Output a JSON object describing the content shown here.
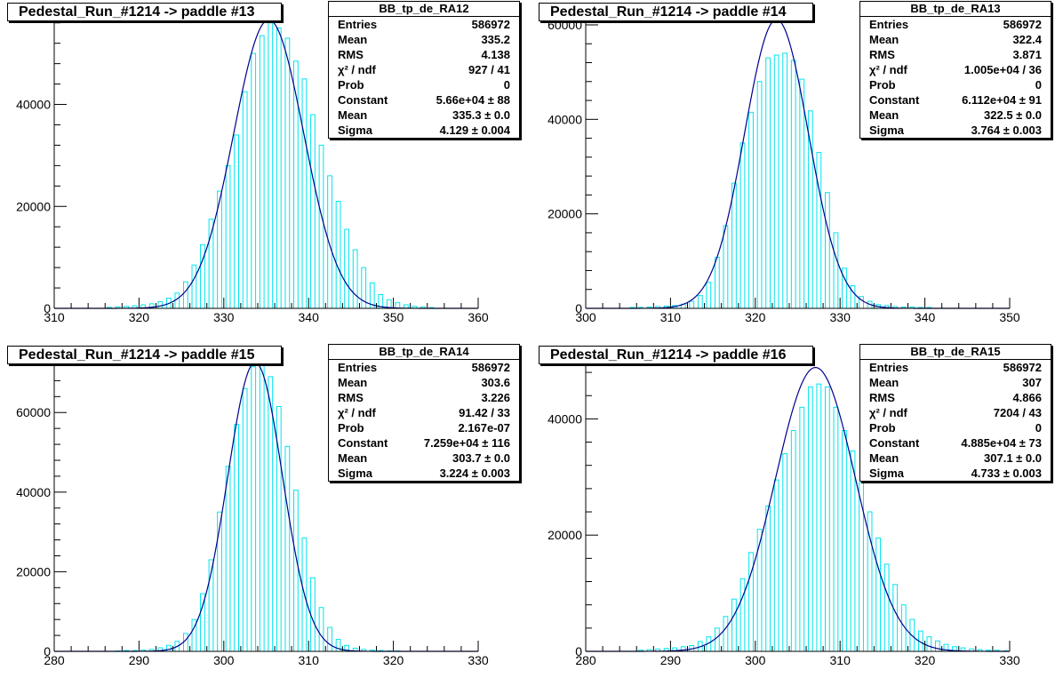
{
  "colors": {
    "hist": "#00e5ee",
    "fit": "#00008b",
    "axis": "#000000"
  },
  "pads": [
    {
      "title": "Pedestal_Run_#1214 -> paddle #13",
      "stats": {
        "name": "BB_tp_de_RA12",
        "rows": [
          [
            "Entries",
            "586972"
          ],
          [
            "Mean",
            "335.2"
          ],
          [
            "RMS",
            "4.138"
          ],
          [
            "χ² / ndf",
            "927 / 41"
          ],
          [
            "Prob",
            "0"
          ],
          [
            "Constant",
            "5.66e+04 ± 88"
          ],
          [
            "Mean",
            "335.3 ± 0.0"
          ],
          [
            "Sigma",
            "4.129 ± 0.004"
          ]
        ]
      }
    },
    {
      "title": "Pedestal_Run_#1214 -> paddle #14",
      "stats": {
        "name": "BB_tp_de_RA13",
        "rows": [
          [
            "Entries",
            "586972"
          ],
          [
            "Mean",
            "322.4"
          ],
          [
            "RMS",
            "3.871"
          ],
          [
            "χ² / ndf",
            "1.005e+04 / 36"
          ],
          [
            "Prob",
            "0"
          ],
          [
            "Constant",
            "6.112e+04 ± 91"
          ],
          [
            "Mean",
            "322.5 ± 0.0"
          ],
          [
            "Sigma",
            "3.764 ± 0.003"
          ]
        ]
      }
    },
    {
      "title": "Pedestal_Run_#1214 -> paddle #15",
      "stats": {
        "name": "BB_tp_de_RA14",
        "rows": [
          [
            "Entries",
            "586972"
          ],
          [
            "Mean",
            "303.6"
          ],
          [
            "RMS",
            "3.226"
          ],
          [
            "χ² / ndf",
            "91.42 / 33"
          ],
          [
            "Prob",
            "2.167e-07"
          ],
          [
            "Constant",
            "7.259e+04 ± 116"
          ],
          [
            "Mean",
            "303.7 ± 0.0"
          ],
          [
            "Sigma",
            "3.224 ± 0.003"
          ]
        ]
      }
    },
    {
      "title": "Pedestal_Run_#1214 -> paddle #16",
      "stats": {
        "name": "BB_tp_de_RA15",
        "rows": [
          [
            "Entries",
            "586972"
          ],
          [
            "Mean",
            "307"
          ],
          [
            "RMS",
            "4.866"
          ],
          [
            "χ² / ndf",
            "7204 / 43"
          ],
          [
            "Prob",
            "0"
          ],
          [
            "Constant",
            "4.885e+04 ± 73"
          ],
          [
            "Mean",
            "307.1 ± 0.0"
          ],
          [
            "Sigma",
            "4.733 ± 0.003"
          ]
        ]
      }
    }
  ],
  "chart_data": [
    {
      "type": "bar",
      "title": "Pedestal_Run_#1214 -> paddle #13",
      "xlim": [
        310,
        360
      ],
      "ylim": [
        0,
        57000
      ],
      "xticks": [
        310,
        320,
        330,
        340,
        350,
        360
      ],
      "yticks": [
        0,
        20000,
        40000
      ],
      "bin_width": 1,
      "x": [
        316,
        317,
        318,
        319,
        320,
        321,
        322,
        323,
        324,
        325,
        326,
        327,
        328,
        329,
        330,
        331,
        332,
        333,
        334,
        335,
        336,
        337,
        338,
        339,
        340,
        341,
        342,
        343,
        344,
        345,
        346,
        347,
        348,
        349,
        350,
        351,
        352,
        353,
        354
      ],
      "values": [
        200,
        300,
        400,
        500,
        700,
        900,
        1300,
        2000,
        3000,
        5200,
        8500,
        12500,
        17500,
        23000,
        28000,
        34000,
        42500,
        50000,
        53500,
        56000,
        55000,
        53000,
        48500,
        45000,
        38000,
        32000,
        26000,
        21000,
        15500,
        11500,
        8000,
        5000,
        2700,
        1700,
        1100,
        700,
        400,
        300,
        150
      ],
      "fit": {
        "constant": 56600,
        "mean": 335.3,
        "sigma": 4.129
      }
    },
    {
      "type": "bar",
      "title": "Pedestal_Run_#1214 -> paddle #14",
      "xlim": [
        300,
        350
      ],
      "ylim": [
        0,
        61500
      ],
      "xticks": [
        300,
        310,
        320,
        330,
        340,
        350
      ],
      "yticks": [
        0,
        20000,
        40000,
        60000
      ],
      "bin_width": 1,
      "x": [
        305,
        306,
        307,
        308,
        309,
        310,
        311,
        312,
        313,
        314,
        315,
        316,
        317,
        318,
        319,
        320,
        321,
        322,
        323,
        324,
        325,
        326,
        327,
        328,
        329,
        330,
        331,
        332,
        333,
        334,
        335,
        336,
        337,
        338,
        339,
        340
      ],
      "values": [
        200,
        200,
        300,
        400,
        500,
        600,
        900,
        1500,
        2700,
        5500,
        10800,
        17500,
        26500,
        35000,
        41500,
        48000,
        53000,
        53600,
        54000,
        52500,
        48500,
        41800,
        33000,
        24500,
        16000,
        8500,
        4800,
        2500,
        1500,
        800,
        600,
        400,
        300,
        300,
        200,
        200
      ],
      "fit": {
        "constant": 61120,
        "mean": 322.5,
        "sigma": 3.764
      }
    },
    {
      "type": "bar",
      "title": "Pedestal_Run_#1214 -> paddle #15",
      "xlim": [
        280,
        330
      ],
      "ylim": [
        0,
        73000
      ],
      "xticks": [
        280,
        290,
        300,
        310,
        320,
        330
      ],
      "yticks": [
        0,
        20000,
        40000,
        60000
      ],
      "bin_width": 1,
      "x": [
        287,
        288,
        289,
        290,
        291,
        292,
        293,
        294,
        295,
        296,
        297,
        298,
        299,
        300,
        301,
        302,
        303,
        304,
        305,
        306,
        307,
        308,
        309,
        310,
        311,
        312,
        313,
        314,
        315,
        316,
        317,
        318,
        319,
        320
      ],
      "values": [
        100,
        200,
        200,
        300,
        500,
        900,
        1500,
        2500,
        4500,
        8000,
        14500,
        23000,
        35000,
        46500,
        57000,
        66000,
        71500,
        72500,
        69000,
        61500,
        51500,
        40500,
        28500,
        18500,
        11000,
        6000,
        3000,
        1500,
        800,
        500,
        300,
        200,
        100,
        100
      ],
      "fit": {
        "constant": 72590,
        "mean": 303.7,
        "sigma": 3.224
      }
    },
    {
      "type": "bar",
      "title": "Pedestal_Run_#1214 -> paddle #16",
      "xlim": [
        280,
        330
      ],
      "ylim": [
        0,
        50000
      ],
      "xticks": [
        280,
        290,
        300,
        310,
        320,
        330
      ],
      "yticks": [
        0,
        20000,
        40000
      ],
      "bin_width": 1,
      "x": [
        286,
        287,
        288,
        289,
        290,
        291,
        292,
        293,
        294,
        295,
        296,
        297,
        298,
        299,
        300,
        301,
        302,
        303,
        304,
        305,
        306,
        307,
        308,
        309,
        310,
        311,
        312,
        313,
        314,
        315,
        316,
        317,
        318,
        319,
        320,
        321,
        322,
        323,
        324,
        325,
        326,
        327,
        328,
        329
      ],
      "values": [
        200,
        300,
        400,
        500,
        600,
        800,
        1000,
        1700,
        2500,
        4000,
        6000,
        9000,
        12500,
        17000,
        21000,
        25000,
        29500,
        34000,
        38000,
        42000,
        45500,
        46000,
        45500,
        42000,
        38000,
        34500,
        29000,
        24000,
        19500,
        15000,
        11500,
        8000,
        5500,
        3500,
        2500,
        1800,
        1200,
        800,
        600,
        400,
        300,
        200,
        200,
        100
      ],
      "fit": {
        "constant": 48850,
        "mean": 307.1,
        "sigma": 4.733
      }
    }
  ]
}
